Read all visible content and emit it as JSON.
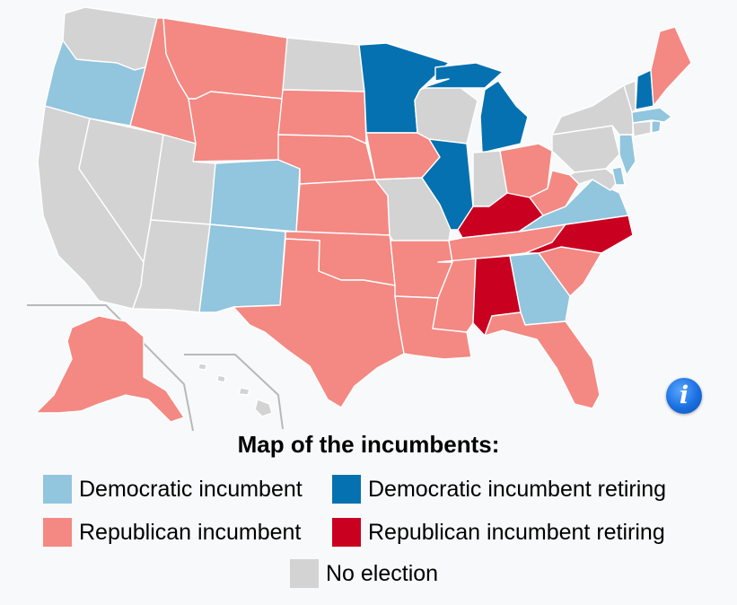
{
  "colors": {
    "democratic_incumbent": "#92c5de",
    "democratic_retiring": "#0571b0",
    "republican_incumbent": "#f48882",
    "republican_retiring": "#ca0020",
    "no_election": "#d3d3d3"
  },
  "legend": {
    "title": "Map of the incumbents:",
    "items": {
      "dem_inc": "Democratic incumbent",
      "dem_ret": "Democratic incumbent retiring",
      "rep_inc": "Republican incumbent",
      "rep_ret": "Republican incumbent retiring",
      "none": "No election"
    }
  },
  "info_icon": "info-icon",
  "states": {
    "WA": "no_election",
    "OR": "democratic_incumbent",
    "CA": "no_election",
    "NV": "no_election",
    "ID": "republican_incumbent",
    "MT": "republican_incumbent",
    "WY": "republican_incumbent",
    "UT": "no_election",
    "AZ": "no_election",
    "CO": "democratic_incumbent",
    "NM": "democratic_incumbent",
    "ND": "no_election",
    "SD": "republican_incumbent",
    "NE": "republican_incumbent",
    "KS": "republican_incumbent",
    "OK": "republican_incumbent",
    "TX": "republican_incumbent",
    "MN": "democratic_retiring",
    "IA": "republican_incumbent",
    "MO": "no_election",
    "AR": "republican_incumbent",
    "LA": "republican_incumbent",
    "WI": "no_election",
    "IL": "democratic_retiring",
    "MI": "democratic_retiring",
    "IN": "no_election",
    "OH": "republican_incumbent",
    "KY": "republican_retiring",
    "TN": "republican_incumbent",
    "MS": "republican_incumbent",
    "AL": "republican_retiring",
    "GA": "democratic_incumbent",
    "FL": "republican_incumbent",
    "SC": "republican_incumbent",
    "NC": "republican_retiring",
    "VA": "democratic_incumbent",
    "WV": "republican_incumbent",
    "PA": "no_election",
    "NY": "no_election",
    "VT": "no_election",
    "NH": "democratic_retiring",
    "ME": "republican_incumbent",
    "MA": "democratic_incumbent",
    "RI": "democratic_incumbent",
    "CT": "no_election",
    "NJ": "democratic_incumbent",
    "DE": "democratic_incumbent",
    "MD": "no_election",
    "AK": "republican_incumbent",
    "HI": "no_election"
  }
}
